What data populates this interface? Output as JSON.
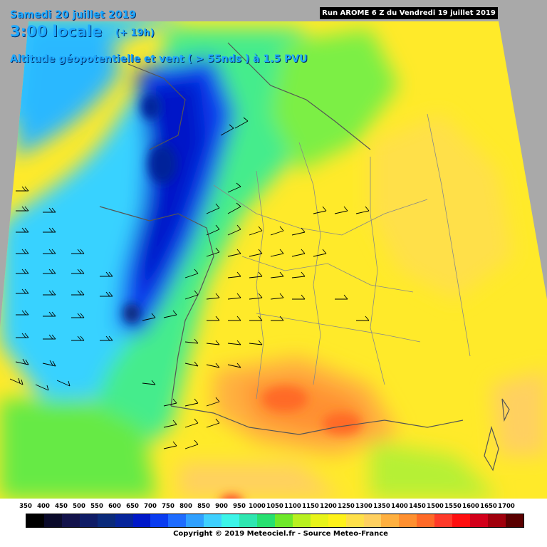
{
  "header": {
    "run_info": "Run AROME 6 Z du Vendredi 19 juillet 2019",
    "valid_date": "Samedi 20 juillet 2019",
    "valid_time": "3:00 locale",
    "lead_time": "(+ 19h)",
    "parameter": "Altitude géopotentielle et vent ( > 55nds ) à 1.5 PVU"
  },
  "legend": {
    "levels": [
      {
        "label": "350",
        "color": "#000000"
      },
      {
        "label": "400",
        "color": "#0a0a2a"
      },
      {
        "label": "450",
        "color": "#12124a"
      },
      {
        "label": "500",
        "color": "#0f1c66"
      },
      {
        "label": "550",
        "color": "#0a2a7a"
      },
      {
        "label": "600",
        "color": "#06249a"
      },
      {
        "label": "650",
        "color": "#0018c8"
      },
      {
        "label": "700",
        "color": "#0a3cf0"
      },
      {
        "label": "750",
        "color": "#1e6cff"
      },
      {
        "label": "800",
        "color": "#2fa0ff"
      },
      {
        "label": "850",
        "color": "#3fd0ff"
      },
      {
        "label": "900",
        "color": "#3cf4e8"
      },
      {
        "label": "950",
        "color": "#2ee6b0"
      },
      {
        "label": "1000",
        "color": "#27e070"
      },
      {
        "label": "1050",
        "color": "#6ee82a"
      },
      {
        "label": "1100",
        "color": "#b8f020"
      },
      {
        "label": "1150",
        "color": "#e8f41a"
      },
      {
        "label": "1200",
        "color": "#fff21a"
      },
      {
        "label": "1250",
        "color": "#ffe04a"
      },
      {
        "label": "1300",
        "color": "#ffd060"
      },
      {
        "label": "1350",
        "color": "#ffb040"
      },
      {
        "label": "1400",
        "color": "#ff9030"
      },
      {
        "label": "1450",
        "color": "#ff6a28"
      },
      {
        "label": "1500",
        "color": "#ff3a2a"
      },
      {
        "label": "1550",
        "color": "#ff0f10"
      },
      {
        "label": "1600",
        "color": "#d2001a"
      },
      {
        "label": "1650",
        "color": "#a0000c"
      },
      {
        "label": "1700",
        "color": "#5a0000"
      }
    ]
  },
  "copyright": "Copyright © 2019 Meteociel.fr - Source Meteo-France"
}
